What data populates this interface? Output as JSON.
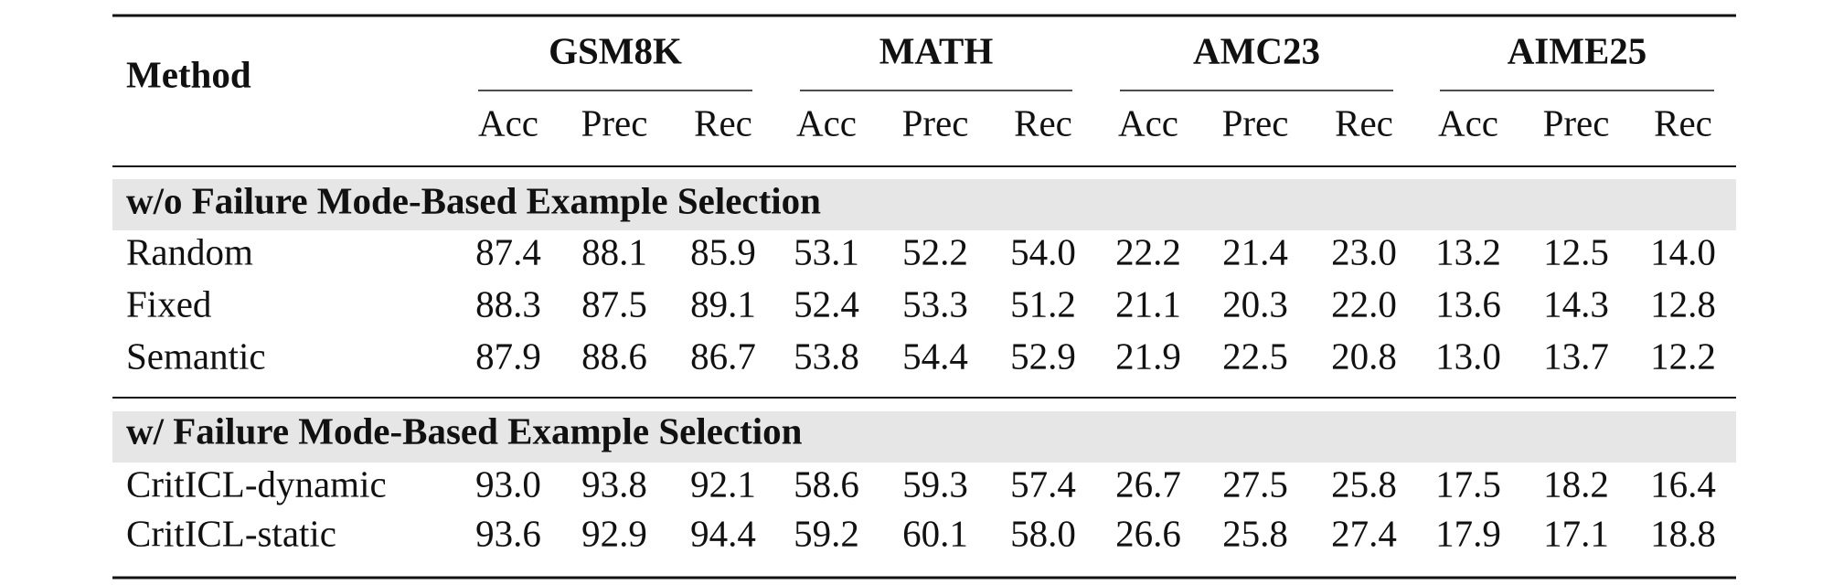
{
  "table": {
    "method_header": "Method",
    "groups": [
      {
        "name": "GSM8K",
        "columns": [
          "Acc",
          "Prec",
          "Rec"
        ]
      },
      {
        "name": "MATH",
        "columns": [
          "Acc",
          "Prec",
          "Rec"
        ]
      },
      {
        "name": "AMC23",
        "columns": [
          "Acc",
          "Prec",
          "Rec"
        ]
      },
      {
        "name": "AIME25",
        "columns": [
          "Acc",
          "Prec",
          "Rec"
        ]
      }
    ],
    "sections": [
      {
        "title": "w/o Failure Mode-Based Example Selection",
        "rows": [
          {
            "method": "Random",
            "values": [
              "87.4",
              "88.1",
              "85.9",
              "53.1",
              "52.2",
              "54.0",
              "22.2",
              "21.4",
              "23.0",
              "13.2",
              "12.5",
              "14.0"
            ]
          },
          {
            "method": "Fixed",
            "values": [
              "88.3",
              "87.5",
              "89.1",
              "52.4",
              "53.3",
              "51.2",
              "21.1",
              "20.3",
              "22.0",
              "13.6",
              "14.3",
              "12.8"
            ]
          },
          {
            "method": "Semantic",
            "values": [
              "87.9",
              "88.6",
              "86.7",
              "53.8",
              "54.4",
              "52.9",
              "21.9",
              "22.5",
              "20.8",
              "13.0",
              "13.7",
              "12.2"
            ]
          }
        ]
      },
      {
        "title": "w/ Failure Mode-Based Example Selection",
        "rows": [
          {
            "method": "CritICL-dynamic",
            "values": [
              "93.0",
              "93.8",
              "92.1",
              "58.6",
              "59.3",
              "57.4",
              "26.7",
              "27.5",
              "25.8",
              "17.5",
              "18.2",
              "16.4"
            ]
          },
          {
            "method": "CritICL-static",
            "values": [
              "93.6",
              "92.9",
              "94.4",
              "59.2",
              "60.1",
              "58.0",
              "26.6",
              "25.8",
              "27.4",
              "17.9",
              "17.1",
              "18.8"
            ]
          }
        ]
      }
    ]
  }
}
